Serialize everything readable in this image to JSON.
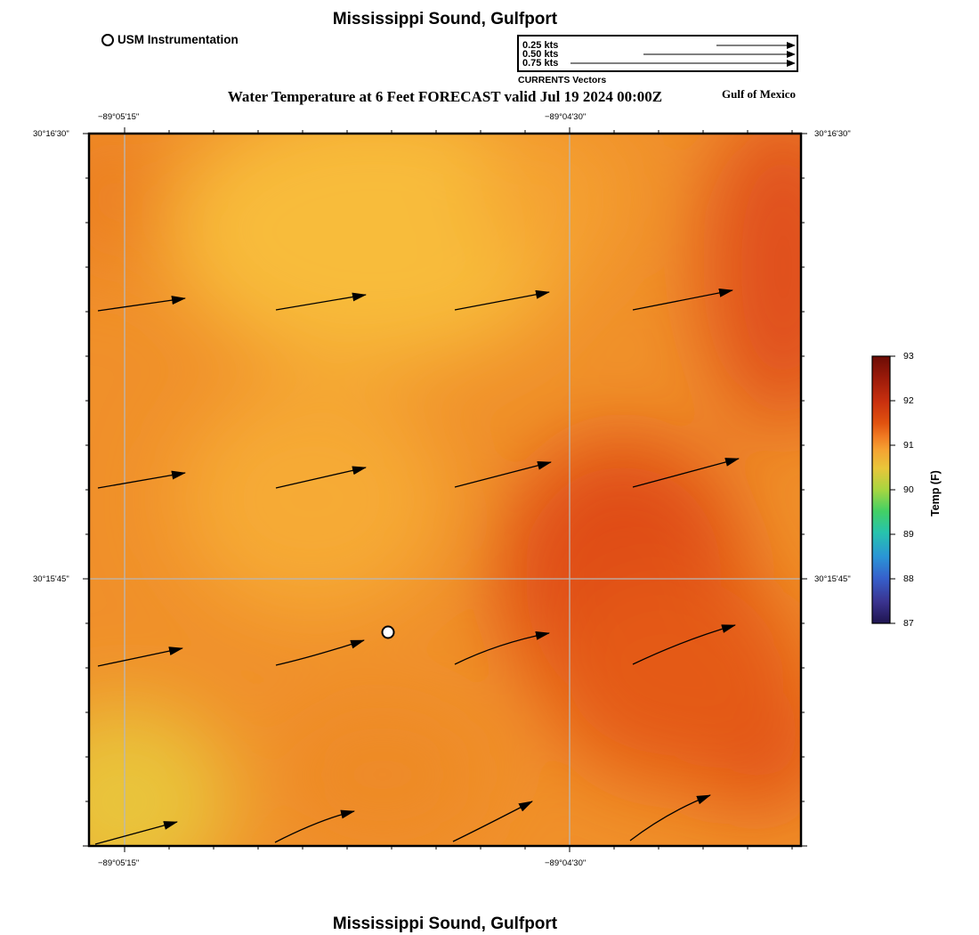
{
  "header": {
    "title": "Mississippi Sound, Gulfport",
    "subtitle": "Water Temperature at 6 Feet FORECAST valid Jul 19 2024 00:00Z",
    "region_label": "Gulf of Mexico"
  },
  "station_legend": {
    "label": "USM Instrumentation"
  },
  "vector_legend": {
    "entries": [
      "0.25 kts",
      "0.50 kts",
      "0.75 kts"
    ],
    "caption": "CURRENTS Vectors"
  },
  "axes": {
    "lon_labels": [
      "−89°05'15\"",
      "−89°04'30\""
    ],
    "lat_labels": [
      "30°16'30\"",
      "30°15'45\""
    ]
  },
  "colorbar": {
    "title": "Temp (F)",
    "ticks": [
      "93",
      "92",
      "91",
      "90",
      "89",
      "88",
      "87"
    ],
    "colors": [
      "#6b0c05",
      "#b5230c",
      "#e0520f",
      "#f18c28",
      "#f6b338",
      "#e0cf3c",
      "#9fd640",
      "#3fd06a",
      "#26c1b3",
      "#2a8fd5",
      "#3659c9",
      "#3b2f8e",
      "#1f1550"
    ]
  },
  "map": {
    "field_colors": {
      "warm_yellow": "#f8b838",
      "orange": "#f08c28",
      "red_orange": "#e14e12",
      "yellow_green": "#e6c23a"
    }
  },
  "footer": {
    "title": "Mississippi Sound, Gulfport"
  }
}
